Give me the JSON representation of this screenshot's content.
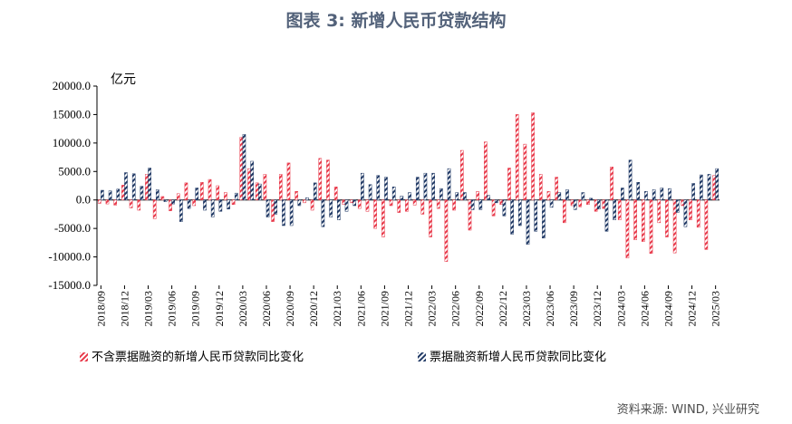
{
  "title": "图表 3:  新增人民币贷款结构",
  "source": "资料来源: WIND, 兴业研究",
  "colors": {
    "series1": "#e8394a",
    "series2": "#1f3864",
    "title": "#53627a"
  },
  "chart_data": {
    "type": "bar",
    "ylabel": "亿元",
    "ylim": [
      -15000,
      20000
    ],
    "yticks": [
      "20000.0",
      "15000.0",
      "10000.0",
      "5000.0",
      "0.0",
      "-5000.0",
      "-10000.0",
      "-15000.0"
    ],
    "categories": [
      "2018/09",
      "2018/10",
      "2018/11",
      "2018/12",
      "2019/01",
      "2019/02",
      "2019/03",
      "2019/04",
      "2019/05",
      "2019/06",
      "2019/07",
      "2019/08",
      "2019/09",
      "2019/10",
      "2019/11",
      "2019/12",
      "2020/01",
      "2020/02",
      "2020/03",
      "2020/04",
      "2020/05",
      "2020/06",
      "2020/07",
      "2020/08",
      "2020/09",
      "2020/10",
      "2020/11",
      "2020/12",
      "2021/01",
      "2021/02",
      "2021/03",
      "2021/04",
      "2021/05",
      "2021/06",
      "2021/07",
      "2021/08",
      "2021/09",
      "2021/10",
      "2021/11",
      "2021/12",
      "2022/01",
      "2022/02",
      "2022/03",
      "2022/04",
      "2022/05",
      "2022/06",
      "2022/07",
      "2022/08",
      "2022/09",
      "2022/10",
      "2022/11",
      "2022/12",
      "2023/01",
      "2023/02",
      "2023/03",
      "2023/04",
      "2023/05",
      "2023/06",
      "2023/07",
      "2023/08",
      "2023/09",
      "2023/10",
      "2023/11",
      "2023/12",
      "2024/01",
      "2024/02",
      "2024/03",
      "2024/04",
      "2024/05",
      "2024/06",
      "2024/07",
      "2024/08",
      "2024/09",
      "2024/10",
      "2024/11",
      "2024/12",
      "2025/01",
      "2025/02",
      "2025/03"
    ],
    "x_tick_labels": [
      "2018/09",
      "2018/12",
      "2019/03",
      "2019/06",
      "2019/09",
      "2019/12",
      "2020/03",
      "2020/06",
      "2020/09",
      "2020/12",
      "2021/03",
      "2021/06",
      "2021/09",
      "2021/12",
      "2022/03",
      "2022/06",
      "2022/09",
      "2022/12",
      "2023/03",
      "2023/06",
      "2023/09",
      "2023/12",
      "2024/03",
      "2024/06",
      "2024/09",
      "2024/12",
      "2025/03"
    ],
    "series": [
      {
        "name": "不含票据融资的新增人民币贷款同比变化",
        "values": [
          -600,
          -700,
          -900,
          2600,
          -1400,
          -1800,
          4500,
          -3300,
          600,
          -1900,
          1100,
          3000,
          -1000,
          3100,
          3600,
          2500,
          1300,
          -800,
          11000,
          5500,
          3000,
          4500,
          -3800,
          4500,
          6500,
          1500,
          -500,
          -1800,
          7300,
          7000,
          2300,
          -800,
          -500,
          -1500,
          -2000,
          -5000,
          -6500,
          -1000,
          -2200,
          -2000,
          -900,
          -2500,
          -6500,
          -1500,
          -10800,
          -1800,
          8700,
          -5300,
          1500,
          10200,
          -2800,
          -800,
          5600,
          15000,
          9800,
          15300,
          4500,
          1500,
          4000,
          -4000,
          -1000,
          -1200,
          -800,
          -2000,
          -1500,
          5800,
          -3500,
          -10200,
          -7000,
          -7300,
          -9400,
          -4000,
          -6500,
          -9300,
          -1000,
          -3500,
          -4800,
          -8700,
          4300
        ]
      },
      {
        "name": "票据融资新增人民币贷款同比变化",
        "values": [
          1700,
          1600,
          1900,
          4800,
          4600,
          2400,
          5600,
          1800,
          -300,
          -700,
          -3800,
          -1500,
          2100,
          -1800,
          -3000,
          -2000,
          -1600,
          1200,
          11500,
          6800,
          2800,
          -3000,
          -2500,
          -4500,
          -4500,
          -1000,
          400,
          3000,
          -4700,
          -3000,
          -3500,
          -2000,
          -1000,
          4700,
          2700,
          4300,
          4000,
          2300,
          700,
          1300,
          4000,
          4700,
          4700,
          2000,
          5500,
          1300,
          1300,
          -1700,
          -1700,
          800,
          -500,
          -2800,
          -6000,
          -4500,
          -7800,
          -5500,
          -6700,
          -1300,
          1300,
          1800,
          -1700,
          1300,
          300,
          -1600,
          -5500,
          -3500,
          2100,
          7000,
          3100,
          1500,
          1800,
          2100,
          2000,
          -2200,
          -4700,
          2900,
          4400,
          4500,
          5500
        ]
      }
    ],
    "legend_position": "bottom",
    "grid": false
  }
}
